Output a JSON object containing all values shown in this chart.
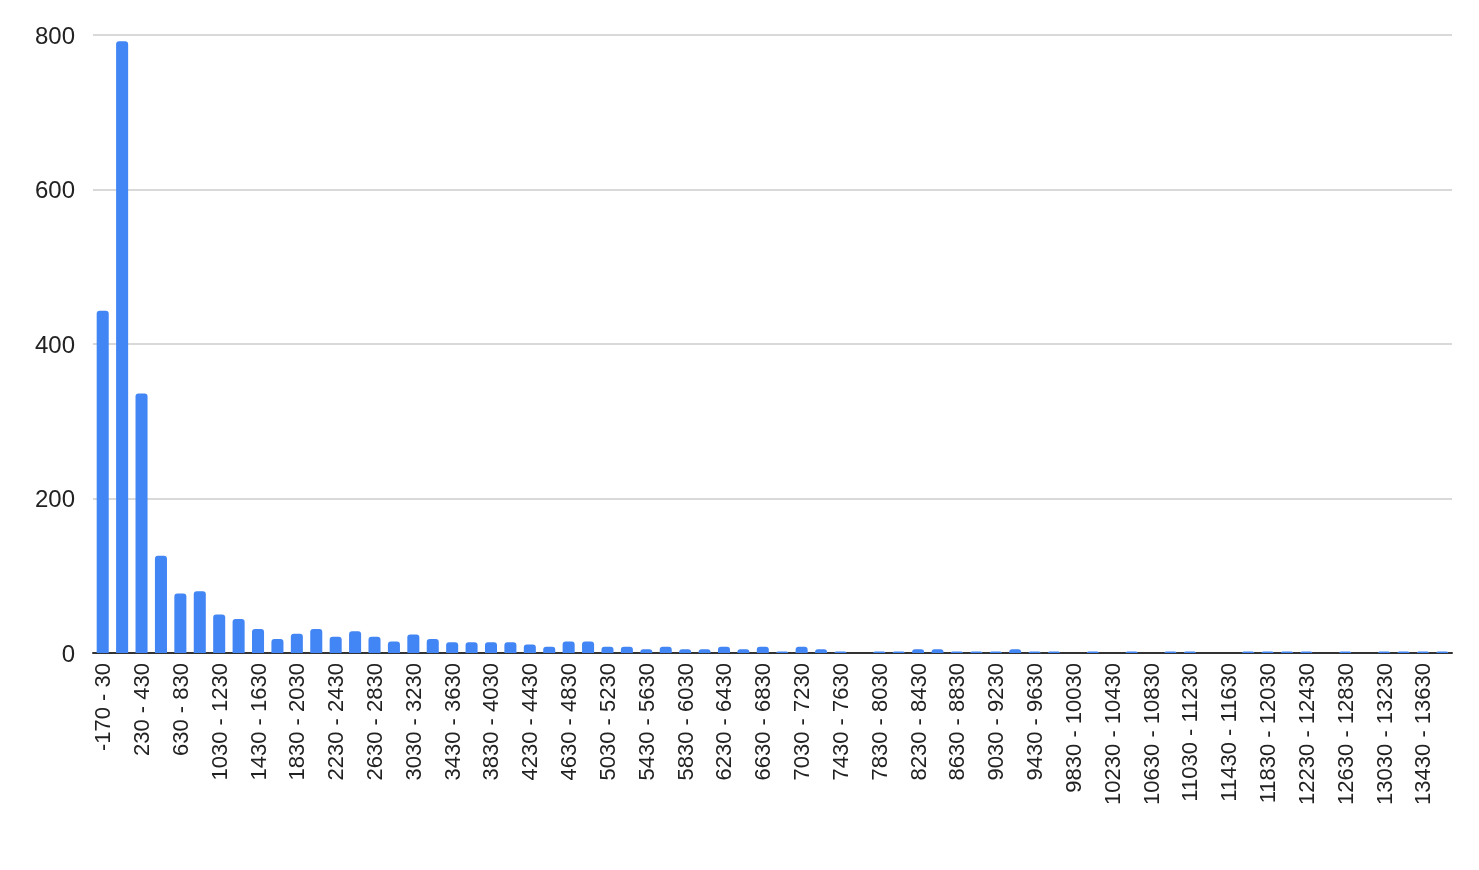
{
  "chart_data": {
    "type": "bar",
    "categories": [
      "-170 - 30",
      null,
      "230 - 430",
      null,
      "630 - 830",
      null,
      "1030 - 1230",
      null,
      "1430 - 1630",
      null,
      "1830 - 2030",
      null,
      "2230 - 2430",
      null,
      "2630 - 2830",
      null,
      "3030 - 3230",
      null,
      "3430 - 3630",
      null,
      "3830 - 4030",
      null,
      "4230 - 4430",
      null,
      "4630 - 4830",
      null,
      "5030 - 5230",
      null,
      "5430 - 5630",
      null,
      "5830 - 6030",
      null,
      "6230 - 6430",
      null,
      "6630 - 6830",
      null,
      "7030 - 7230",
      null,
      "7430 - 7630",
      null,
      "7830 - 8030",
      null,
      "8230 - 8430",
      null,
      "8630 - 8830",
      null,
      "9030 - 9230",
      null,
      "9430 - 9630",
      null,
      "9830 - 10030",
      null,
      "10230 - 10430",
      null,
      "10630 - 10830",
      null,
      "11030 - 11230",
      null,
      "11430 - 11630",
      null,
      "11830 - 12030",
      null,
      "12230 - 12430",
      null,
      "12630 - 12830",
      null,
      "13030 - 13230",
      null,
      "13430 - 13630",
      null
    ],
    "values": [
      443,
      792,
      336,
      126,
      77,
      80,
      50,
      44,
      31,
      18,
      25,
      31,
      21,
      28,
      21,
      15,
      24,
      18,
      14,
      14,
      14,
      14,
      11,
      8,
      15,
      15,
      8,
      8,
      5,
      8,
      5,
      5,
      8,
      5,
      8,
      2,
      8,
      5,
      2,
      0,
      2,
      2,
      5,
      5,
      2,
      2,
      2,
      5,
      2,
      2,
      0,
      2,
      0,
      2,
      0,
      2,
      2,
      0,
      0,
      2,
      2,
      2,
      2,
      0,
      2,
      0,
      2,
      2,
      2,
      2
    ],
    "color": "#4285f4",
    "ylim": [
      0,
      800
    ],
    "yticks": [
      0,
      200,
      400,
      600,
      800
    ],
    "grid": "y"
  }
}
